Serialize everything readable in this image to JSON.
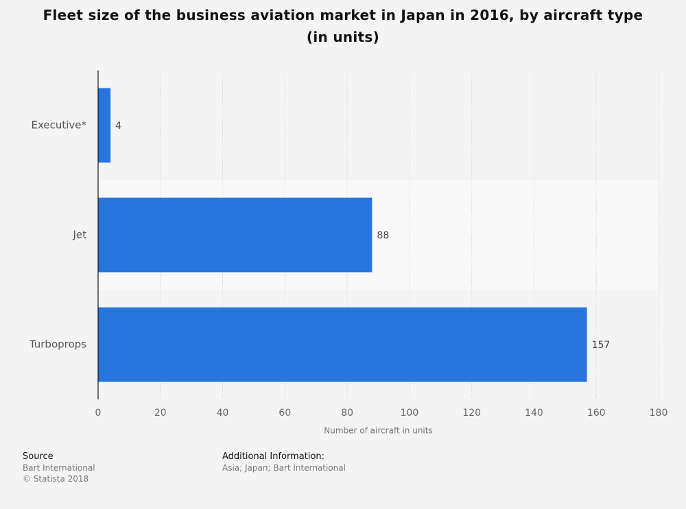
{
  "chart_data": {
    "type": "bar",
    "orientation": "horizontal",
    "title": "Fleet size of the business aviation market in Japan in 2016, by aircraft type (in units)",
    "x_label": "Number of aircraft in units",
    "categories": [
      "Executive*",
      "Jet",
      "Turboprops"
    ],
    "values": [
      4,
      88,
      157
    ],
    "color": "#2876dd",
    "xlim": [
      0,
      180
    ],
    "xticks": [
      0,
      20,
      40,
      60,
      80,
      100,
      120,
      140,
      160,
      180
    ],
    "grid": true
  },
  "footer": {
    "source_label": "Source",
    "source": "Bart International",
    "copyright": "© Statista 2018",
    "additional_label": "Additional Information:",
    "additional": "Asia; Japan; Bart International"
  }
}
